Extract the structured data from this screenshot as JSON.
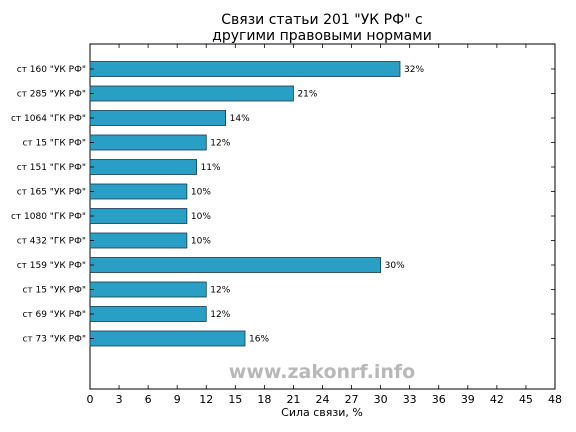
{
  "chart_data": {
    "type": "bar",
    "orientation": "horizontal",
    "title": "Связи статьи 201 \"УК РФ\" с\nдругими правовыми нормами",
    "xlabel": "Сила связи, %",
    "ylabel": "",
    "xlim": [
      0,
      48
    ],
    "xticks": [
      0,
      3,
      6,
      9,
      12,
      15,
      18,
      21,
      24,
      27,
      30,
      33,
      36,
      39,
      42,
      45,
      48
    ],
    "grid": false,
    "categories": [
      "ст 160 \"УК РФ\"",
      "ст 285 \"УК РФ\"",
      "ст 1064 \"ГК РФ\"",
      "ст 15 \"ГК РФ\"",
      "ст 151 \"ГК РФ\"",
      "ст 165 \"УК РФ\"",
      "ст 1080 \"ГК РФ\"",
      "ст 432 \"ГК РФ\"",
      "ст 159 \"УК РФ\"",
      "ст 15 \"УК РФ\"",
      "ст 69 \"УК РФ\"",
      "ст 73 \"УК РФ\""
    ],
    "values": [
      32,
      21,
      14,
      12,
      11,
      10,
      10,
      10,
      30,
      12,
      12,
      16
    ],
    "data_labels": [
      "32%",
      "21%",
      "14%",
      "12%",
      "11%",
      "10%",
      "10%",
      "10%",
      "30%",
      "12%",
      "12%",
      "16%"
    ],
    "bar_color": "#2a9fc6",
    "bar_edge_color": "#1a3a4a",
    "watermark": "www.zakonrf.info"
  }
}
